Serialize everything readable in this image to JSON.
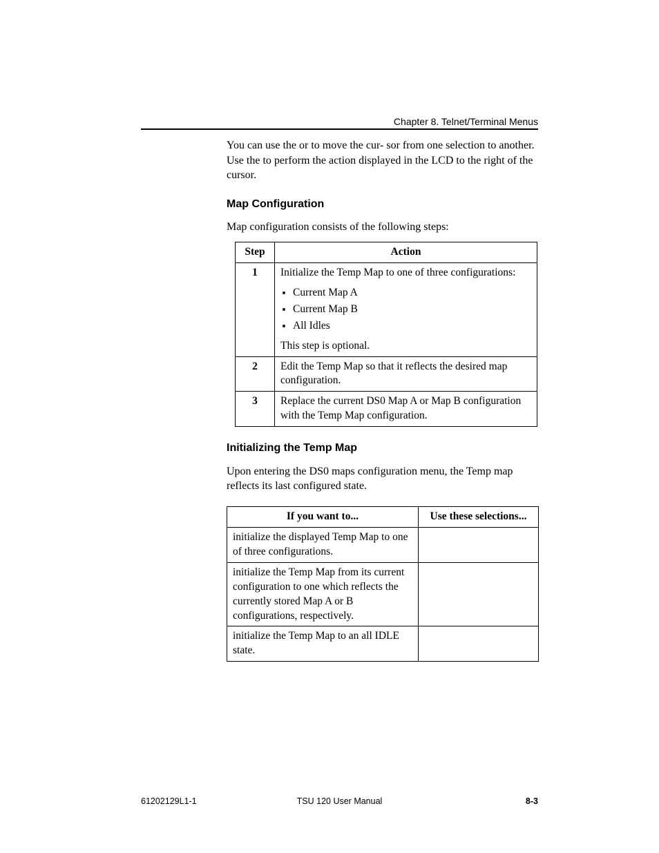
{
  "header": {
    "running": "Chapter 8. Telnet/Terminal Menus"
  },
  "intro": {
    "line1a": "You can use the ",
    "line1b": " or ",
    "line1c": " to move the cur-",
    "line2a": "sor from one selection to another. Use the ",
    "line2b": " to perform",
    "line3": "the action displayed in the LCD to the right of the cursor."
  },
  "sections": {
    "mapconfig_title": "Map Configuration",
    "mapconfig_intro": "Map configuration consists of the following steps:",
    "inittemp_title": "Initializing the Temp Map",
    "inittemp_intro": "Upon entering the DS0 maps configuration menu, the Temp map reflects its last configured state."
  },
  "steps_table": {
    "head_step": "Step",
    "head_action": "Action",
    "rows": [
      {
        "num": "1",
        "lead": "Initialize the Temp Map to one of three configurations:",
        "items": [
          "Current Map A",
          "Current Map B",
          "All Idles"
        ],
        "tail": "This step is optional."
      },
      {
        "num": "2",
        "text": "Edit the Temp Map so that it reflects the desired map configuration."
      },
      {
        "num": "3",
        "text": "Replace the current DS0 Map A or Map B configuration with the Temp Map configuration."
      }
    ]
  },
  "wants_table": {
    "head_a": "If you want to...",
    "head_b": "Use these selections...",
    "rows": [
      {
        "a": "initialize the displayed Temp Map to one of three configurations.",
        "b": ""
      },
      {
        "a": "initialize the Temp Map from its current configuration to one which reflects the currently stored Map A or B configurations, respectively.",
        "b": ""
      },
      {
        "a": "initialize the Temp Map to an all IDLE state.",
        "b": ""
      }
    ]
  },
  "footer": {
    "left": "61202129L1-1",
    "center": "TSU 120 User Manual",
    "right": "8-3"
  }
}
